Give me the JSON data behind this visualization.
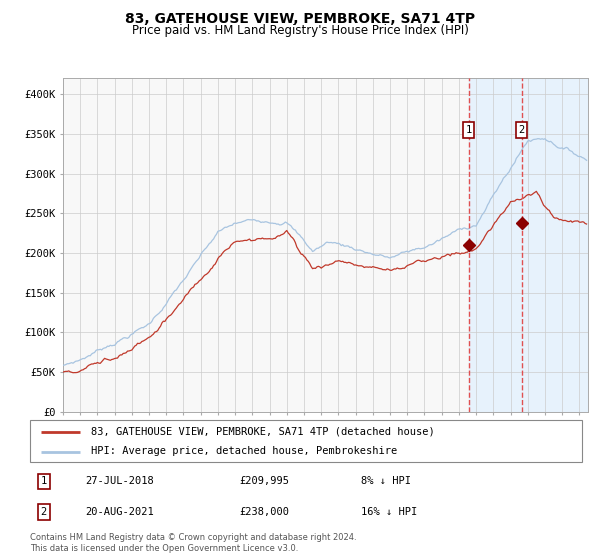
{
  "title": "83, GATEHOUSE VIEW, PEMBROKE, SA71 4TP",
  "subtitle": "Price paid vs. HM Land Registry's House Price Index (HPI)",
  "legend_line1": "83, GATEHOUSE VIEW, PEMBROKE, SA71 4TP (detached house)",
  "legend_line2": "HPI: Average price, detached house, Pembrokeshire",
  "footnote": "Contains HM Land Registry data © Crown copyright and database right 2024.\nThis data is licensed under the Open Government Licence v3.0.",
  "sale1_date": "27-JUL-2018",
  "sale1_price": 209995,
  "sale1_label": "1",
  "sale1_note": "8% ↓ HPI",
  "sale2_date": "20-AUG-2021",
  "sale2_price": 238000,
  "sale2_label": "2",
  "sale2_note": "16% ↓ HPI",
  "sale1_year": 2018.57,
  "sale2_year": 2021.64,
  "hpi_line_color": "#a8c4e0",
  "price_line_color": "#c0392b",
  "marker_color": "#8B0000",
  "vline_color": "#e05050",
  "shade_color": "#ddeeff",
  "background_color": "#f8f8f8",
  "grid_color": "#cccccc",
  "ylim": [
    0,
    420000
  ],
  "xlim_start": 1995.0,
  "xlim_end": 2025.5
}
